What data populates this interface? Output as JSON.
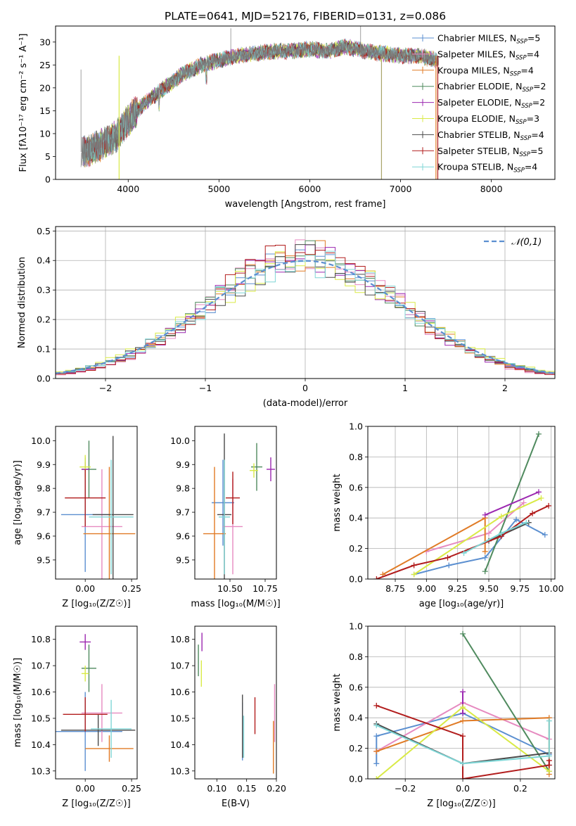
{
  "figure_title": "PLATE=0641, MJD=52176, FIBERID=0131, z=0.086",
  "colors": {
    "Chabrier MILES": "#5b8fd0",
    "Salpeter MILES": "#e68ac0",
    "Kroupa MILES": "#e07b26",
    "Chabrier ELODIE": "#4f8a5e",
    "Salpeter ELODIE": "#9b27b0",
    "Kroupa ELODIE": "#d9ea46",
    "Chabrier STELIB": "#4a4a4a",
    "Salpeter STELIB": "#b21d1d",
    "Kroupa STELIB": "#7fd6d6"
  },
  "chart_data": [
    {
      "id": "spectrum",
      "type": "line",
      "title": "PLATE=0641, MJD=52176, FIBERID=0131, z=0.086",
      "xlabel": "wavelength [Angstrom, rest frame]",
      "ylabel": "Flux [fλ10⁻¹⁷ erg cm⁻² s⁻¹ A⁻¹]",
      "xlim": [
        3200,
        8700
      ],
      "ylim": [
        0,
        33.5
      ],
      "xticks": [
        4000,
        5000,
        6000,
        7000,
        8000
      ],
      "yticks": [
        0,
        5,
        10,
        15,
        20,
        25,
        30
      ],
      "grid": false,
      "legend_position": "top-right",
      "continuum": {
        "x": [
          3500,
          3600,
          3700,
          3800,
          3900,
          4000,
          4200,
          4400,
          4600,
          4800,
          5000,
          5200,
          5400,
          5600,
          5800,
          6000,
          6200,
          6400,
          6600,
          6800,
          7000,
          7200,
          7400
        ],
        "y": [
          6,
          6.5,
          7.5,
          8.5,
          10,
          13,
          17,
          20,
          23,
          25,
          26,
          27,
          27.5,
          28,
          28,
          28.5,
          28,
          29,
          28,
          27.5,
          27,
          27,
          26
        ]
      },
      "series": [
        {
          "name": "Chabrier MILES",
          "legend": "Chabrier MILES, N_SSP=5"
        },
        {
          "name": "Salpeter MILES",
          "legend": "Salpeter MILES, N_SSP=4"
        },
        {
          "name": "Kroupa MILES",
          "legend": "Kroupa MILES, N_SSP=4"
        },
        {
          "name": "Chabrier ELODIE",
          "legend": "Chabrier ELODIE, N_SSP=2"
        },
        {
          "name": "Salpeter ELODIE",
          "legend": "Salpeter ELODIE, N_SSP=2"
        },
        {
          "name": "Kroupa ELODIE",
          "legend": "Kroupa ELODIE, N_SSP=3"
        },
        {
          "name": "Chabrier STELIB",
          "legend": "Chabrier STELIB, N_SSP=4"
        },
        {
          "name": "Salpeter STELIB",
          "legend": "Salpeter STELIB, N_SSP=5"
        },
        {
          "name": "Kroupa STELIB",
          "legend": "Kroupa STELIB, N_SSP=4"
        }
      ]
    },
    {
      "id": "residuals",
      "type": "line",
      "xlabel": "(data-model)/error",
      "ylabel": "Normed distribution",
      "xlim": [
        -2.5,
        2.5
      ],
      "ylim": [
        0,
        0.515
      ],
      "xticks": [
        -2,
        -1,
        0,
        1,
        2
      ],
      "yticks": [
        0.0,
        0.1,
        0.2,
        0.3,
        0.4,
        0.5
      ],
      "grid": true,
      "legend_position": "top-right",
      "reference": {
        "name": "𝒩(0,1)",
        "mean": 0,
        "sigma": 1
      },
      "bin_width": 0.1,
      "series": [
        {
          "name": "Chabrier MILES",
          "sigma": 0.98
        },
        {
          "name": "Salpeter MILES",
          "sigma": 0.92
        },
        {
          "name": "Kroupa MILES",
          "sigma": 0.96
        },
        {
          "name": "Chabrier ELODIE",
          "sigma": 0.97
        },
        {
          "name": "Salpeter ELODIE",
          "sigma": 0.95
        },
        {
          "name": "Kroupa ELODIE",
          "sigma": 1.02
        },
        {
          "name": "Chabrier STELIB",
          "sigma": 0.99
        },
        {
          "name": "Salpeter STELIB",
          "sigma": 0.94
        },
        {
          "name": "Kroupa STELIB",
          "sigma": 1.0
        }
      ]
    },
    {
      "id": "age_vs_z",
      "type": "scatter",
      "xlabel": "Z [log₁₀(Z/Z☉)]",
      "ylabel": "age  [log₁₀(age/yr)]",
      "xlim": [
        -0.16,
        0.28
      ],
      "ylim": [
        9.42,
        10.06
      ],
      "xticks": [
        0.0,
        0.25
      ],
      "yticks": [
        9.5,
        9.6,
        9.7,
        9.8,
        9.9,
        10.0
      ],
      "points": [
        {
          "series": "Chabrier MILES",
          "x": 0.0,
          "y": 9.69,
          "xerr": 0.13,
          "yerr": 0.24
        },
        {
          "series": "Salpeter MILES",
          "x": 0.09,
          "y": 9.64,
          "xerr": 0.11,
          "yerr": 0.24
        },
        {
          "series": "Kroupa MILES",
          "x": 0.13,
          "y": 9.61,
          "xerr": 0.14,
          "yerr": 0.28
        },
        {
          "series": "Chabrier ELODIE",
          "x": 0.02,
          "y": 9.88,
          "xerr": 0.04,
          "yerr": 0.12
        },
        {
          "series": "Salpeter ELODIE",
          "x": 0.0,
          "y": 9.88,
          "xerr": 0.02,
          "yerr": 0.03
        },
        {
          "series": "Kroupa ELODIE",
          "x": 0.0,
          "y": 9.89,
          "xerr": 0.03,
          "yerr": 0.05
        },
        {
          "series": "Chabrier STELIB",
          "x": 0.15,
          "y": 9.69,
          "xerr": 0.11,
          "yerr": 0.33
        },
        {
          "series": "Salpeter STELIB",
          "x": 0.0,
          "y": 9.76,
          "xerr": 0.11,
          "yerr": 0.12
        },
        {
          "series": "Kroupa STELIB",
          "x": 0.14,
          "y": 9.68,
          "xerr": 0.12,
          "yerr": 0.24
        }
      ]
    },
    {
      "id": "age_vs_mass",
      "type": "scatter",
      "xlabel": "mass [log₁₀(M/M☉)]",
      "ylabel": "",
      "xlim": [
        10.25,
        10.83
      ],
      "ylim": [
        9.42,
        10.06
      ],
      "xticks": [
        10.5,
        10.75
      ],
      "yticks": [
        9.5,
        9.6,
        9.7,
        9.8,
        9.9,
        10.0
      ],
      "points": [
        {
          "series": "Chabrier MILES",
          "x": 10.45,
          "y": 9.74,
          "xerr": 0.08,
          "yerr": 0.18
        },
        {
          "series": "Salpeter MILES",
          "x": 10.52,
          "y": 9.64,
          "xerr": 0.07,
          "yerr": 0.2
        },
        {
          "series": "Kroupa MILES",
          "x": 10.39,
          "y": 9.61,
          "xerr": 0.08,
          "yerr": 0.28
        },
        {
          "series": "Chabrier ELODIE",
          "x": 10.69,
          "y": 9.89,
          "xerr": 0.04,
          "yerr": 0.1
        },
        {
          "series": "Salpeter ELODIE",
          "x": 10.79,
          "y": 9.88,
          "xerr": 0.03,
          "yerr": 0.05
        },
        {
          "series": "Kroupa ELODIE",
          "x": 10.67,
          "y": 9.875,
          "xerr": 0.03,
          "yerr": 0.03
        },
        {
          "series": "Chabrier STELIB",
          "x": 10.46,
          "y": 9.69,
          "xerr": 0.05,
          "yerr": 0.34
        },
        {
          "series": "Salpeter STELIB",
          "x": 10.52,
          "y": 9.76,
          "xerr": 0.05,
          "yerr": 0.11
        },
        {
          "series": "Kroupa STELIB",
          "x": 10.46,
          "y": 9.68,
          "xerr": 0.04,
          "yerr": 0.24
        }
      ]
    },
    {
      "id": "mass_weight_vs_age",
      "type": "line",
      "xlabel": "age  [log₁₀(age/yr)]",
      "ylabel": "mass weight",
      "xlim": [
        8.53,
        10.03
      ],
      "ylim": [
        0,
        1.0
      ],
      "xticks": [
        8.75,
        9.0,
        9.25,
        9.5,
        9.75,
        10.0
      ],
      "yticks": [
        0.0,
        0.2,
        0.4,
        0.6,
        0.8,
        1.0
      ],
      "grid": true,
      "series": [
        {
          "name": "Chabrier MILES",
          "x": [
            8.9,
            9.18,
            9.47,
            9.72,
            9.95
          ],
          "y": [
            0.03,
            0.09,
            0.14,
            0.39,
            0.29
          ]
        },
        {
          "name": "Salpeter MILES",
          "x": [
            9.0,
            9.5,
            9.78
          ],
          "y": [
            0.18,
            0.3,
            0.5
          ]
        },
        {
          "name": "Kroupa MILES",
          "x": [
            8.65,
            9.47,
            9.47
          ],
          "y": [
            0.03,
            0.4,
            0.18
          ]
        },
        {
          "name": "Chabrier ELODIE",
          "x": [
            9.47,
            9.9
          ],
          "y": [
            0.05,
            0.95
          ]
        },
        {
          "name": "Salpeter ELODIE",
          "x": [
            9.47,
            9.9
          ],
          "y": [
            0.42,
            0.57
          ]
        },
        {
          "name": "Kroupa ELODIE",
          "x": [
            8.9,
            9.6,
            9.92
          ],
          "y": [
            0.03,
            0.41,
            0.53
          ]
        },
        {
          "name": "Chabrier STELIB",
          "x": [
            9.5,
            9.82
          ],
          "y": [
            0.25,
            0.37
          ]
        },
        {
          "name": "Salpeter STELIB",
          "x": [
            8.6,
            8.9,
            9.17,
            9.6,
            9.85,
            9.98
          ],
          "y": [
            0.0,
            0.09,
            0.14,
            0.28,
            0.43,
            0.48
          ]
        },
        {
          "name": "Kroupa STELIB",
          "x": [
            9.3,
            9.6,
            9.8
          ],
          "y": [
            0.17,
            0.3,
            0.37
          ]
        }
      ]
    },
    {
      "id": "mass_vs_z",
      "type": "scatter",
      "xlabel": "Z [log₁₀(Z/Z☉)]",
      "ylabel": "mass [log₁₀(M/M☉)]",
      "xlim": [
        -0.16,
        0.28
      ],
      "ylim": [
        10.27,
        10.85
      ],
      "xticks": [
        0.0,
        0.25
      ],
      "yticks": [
        10.3,
        10.4,
        10.5,
        10.6,
        10.7,
        10.8
      ],
      "points": [
        {
          "series": "Chabrier MILES",
          "x": 0.0,
          "y": 10.45,
          "xerr": 0.2,
          "yerr": 0.15
        },
        {
          "series": "Salpeter MILES",
          "x": 0.09,
          "y": 10.52,
          "xerr": 0.11,
          "yerr": 0.11
        },
        {
          "series": "Kroupa MILES",
          "x": 0.13,
          "y": 10.385,
          "xerr": 0.13,
          "yerr": 0.05
        },
        {
          "series": "Chabrier ELODIE",
          "x": 0.02,
          "y": 10.69,
          "xerr": 0.04,
          "yerr": 0.09
        },
        {
          "series": "Salpeter ELODIE",
          "x": 0.0,
          "y": 10.79,
          "xerr": 0.03,
          "yerr": 0.03
        },
        {
          "series": "Kroupa ELODIE",
          "x": 0.0,
          "y": 10.67,
          "xerr": 0.02,
          "yerr": 0.03
        },
        {
          "series": "Chabrier STELIB",
          "x": 0.07,
          "y": 10.455,
          "xerr": 0.2,
          "yerr": 0.06
        },
        {
          "series": "Salpeter STELIB",
          "x": 0.0,
          "y": 10.515,
          "xerr": 0.12,
          "yerr": 0.065
        },
        {
          "series": "Kroupa STELIB",
          "x": 0.14,
          "y": 10.46,
          "xerr": 0.11,
          "yerr": 0.11
        }
      ]
    },
    {
      "id": "mass_vs_ebv",
      "type": "scatter",
      "xlabel": "E(B-V)",
      "ylabel": "",
      "xlim": [
        0.063,
        0.2
      ],
      "ylim": [
        10.27,
        10.85
      ],
      "xticks": [
        0.1,
        0.15,
        0.2
      ],
      "yticks": [
        10.3,
        10.4,
        10.5,
        10.6,
        10.7,
        10.8
      ],
      "points": [
        {
          "series": "Chabrier MILES",
          "x": 0.143,
          "y": 10.45,
          "xerr": 0.0,
          "yerr": 0.11
        },
        {
          "series": "Salpeter MILES",
          "x": 0.197,
          "y": 10.52,
          "xerr": 0.0,
          "yerr": 0.11
        },
        {
          "series": "Kroupa MILES",
          "x": 0.195,
          "y": 10.39,
          "xerr": 0.0,
          "yerr": 0.1
        },
        {
          "series": "Chabrier ELODIE",
          "x": 0.069,
          "y": 10.72,
          "xerr": 0.0,
          "yerr": 0.06
        },
        {
          "series": "Salpeter ELODIE",
          "x": 0.075,
          "y": 10.79,
          "xerr": 0.0,
          "yerr": 0.035
        },
        {
          "series": "Kroupa ELODIE",
          "x": 0.074,
          "y": 10.67,
          "xerr": 0.0,
          "yerr": 0.05
        },
        {
          "series": "Chabrier STELIB",
          "x": 0.143,
          "y": 10.47,
          "xerr": 0.0,
          "yerr": 0.12
        },
        {
          "series": "Salpeter STELIB",
          "x": 0.164,
          "y": 10.51,
          "xerr": 0.0,
          "yerr": 0.07
        },
        {
          "series": "Kroupa STELIB",
          "x": 0.145,
          "y": 10.43,
          "xerr": 0.0,
          "yerr": 0.08
        }
      ]
    },
    {
      "id": "mass_weight_vs_z",
      "type": "line",
      "xlabel": "Z [log₁₀(Z/Z☉)]",
      "ylabel": "mass weight",
      "xlim": [
        -0.33,
        0.32
      ],
      "ylim": [
        0,
        1.0
      ],
      "xticks": [
        -0.2,
        0.0,
        0.2
      ],
      "yticks": [
        0.0,
        0.2,
        0.4,
        0.6,
        0.8,
        1.0
      ],
      "grid": true,
      "series": [
        {
          "name": "Chabrier MILES",
          "x": [
            -0.3,
            -0.3,
            0.0,
            0.3,
            0.3
          ],
          "y": [
            0.1,
            0.28,
            0.43,
            0.16,
            0.09
          ]
        },
        {
          "name": "Salpeter MILES",
          "x": [
            -0.3,
            0.0,
            0.3
          ],
          "y": [
            0.18,
            0.5,
            0.26
          ]
        },
        {
          "name": "Kroupa MILES",
          "x": [
            -0.3,
            0.0,
            0.3,
            0.3
          ],
          "y": [
            0.18,
            0.38,
            0.4,
            0.03
          ]
        },
        {
          "name": "Chabrier ELODIE",
          "x": [
            0.0,
            0.3
          ],
          "y": [
            0.95,
            0.05
          ]
        },
        {
          "name": "Salpeter ELODIE",
          "x": [
            0.0,
            0.0
          ],
          "y": [
            0.57,
            0.43
          ]
        },
        {
          "name": "Kroupa ELODIE",
          "x": [
            -0.3,
            0.0,
            0.3
          ],
          "y": [
            0.0,
            0.47,
            0.05
          ]
        },
        {
          "name": "Chabrier STELIB",
          "x": [
            -0.3,
            0.0,
            0.3
          ],
          "y": [
            0.36,
            0.1,
            0.17
          ]
        },
        {
          "name": "Salpeter STELIB",
          "x": [
            -0.3,
            0.0,
            0.0,
            0.3,
            0.3
          ],
          "y": [
            0.48,
            0.28,
            0.0,
            0.09,
            0.12
          ]
        },
        {
          "name": "Kroupa STELIB",
          "x": [
            -0.3,
            0.0,
            0.3,
            0.3
          ],
          "y": [
            0.35,
            0.1,
            0.15,
            0.38
          ]
        }
      ]
    }
  ]
}
